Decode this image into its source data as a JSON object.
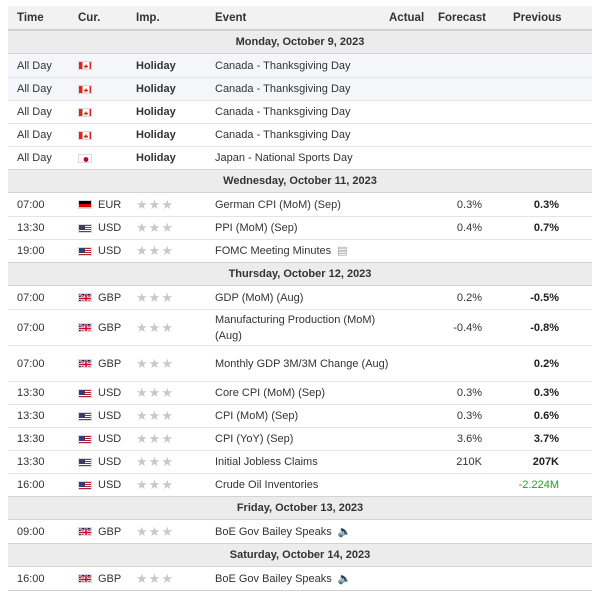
{
  "columns": {
    "time": "Time",
    "cur": "Cur.",
    "imp": "Imp.",
    "event": "Event",
    "actual": "Actual",
    "forecast": "Forecast",
    "previous": "Previous"
  },
  "colors": {
    "header_bg": "#f2f2f2",
    "date_bg": "#ececec",
    "positive": "#2a9a2a",
    "star": "#c8c8c8"
  },
  "days": [
    {
      "date": "Monday, October 9, 2023",
      "rows": [
        {
          "time": "All Day",
          "flag": "ca",
          "cur": "",
          "holiday": "Holiday",
          "event": "Canada - Thanksgiving Day",
          "forecast": "",
          "previous": ""
        },
        {
          "time": "All Day",
          "flag": "ca",
          "cur": "",
          "holiday": "Holiday",
          "event": "Canada - Thanksgiving Day",
          "forecast": "",
          "previous": ""
        },
        {
          "time": "All Day",
          "flag": "ca",
          "cur": "",
          "holiday": "Holiday",
          "event": "Canada - Thanksgiving Day",
          "forecast": "",
          "previous": ""
        },
        {
          "time": "All Day",
          "flag": "ca",
          "cur": "",
          "holiday": "Holiday",
          "event": "Canada - Thanksgiving Day",
          "forecast": "",
          "previous": ""
        },
        {
          "time": "All Day",
          "flag": "jp",
          "cur": "",
          "holiday": "Holiday",
          "event": "Japan - National Sports Day",
          "forecast": "",
          "previous": ""
        }
      ]
    },
    {
      "date": "Wednesday, October 11, 2023",
      "rows": [
        {
          "time": "07:00",
          "flag": "de",
          "cur": "EUR",
          "event": "German CPI (MoM) (Sep)",
          "forecast": "0.3%",
          "previous": "0.3%"
        },
        {
          "time": "13:30",
          "flag": "us",
          "cur": "USD",
          "event": "PPI (MoM) (Sep)",
          "forecast": "0.4%",
          "previous": "0.7%"
        },
        {
          "time": "19:00",
          "flag": "us",
          "cur": "USD",
          "event": "FOMC Meeting Minutes",
          "icon": "document-icon",
          "forecast": "",
          "previous": ""
        }
      ]
    },
    {
      "date": "Thursday, October 12, 2023",
      "rows": [
        {
          "time": "07:00",
          "flag": "gb",
          "cur": "GBP",
          "event": "GDP (MoM) (Aug)",
          "forecast": "0.2%",
          "previous": "-0.5%"
        },
        {
          "time": "07:00",
          "flag": "gb",
          "cur": "GBP",
          "event": "Manufacturing Production (MoM) (Aug)",
          "forecast": "-0.4%",
          "previous": "-0.8%",
          "tall": true
        },
        {
          "time": "07:00",
          "flag": "gb",
          "cur": "GBP",
          "event": "Monthly GDP 3M/3M Change (Aug)",
          "forecast": "",
          "previous": "0.2%",
          "tall": true
        },
        {
          "time": "13:30",
          "flag": "us",
          "cur": "USD",
          "event": "Core CPI (MoM) (Sep)",
          "forecast": "0.3%",
          "previous": "0.3%"
        },
        {
          "time": "13:30",
          "flag": "us",
          "cur": "USD",
          "event": "CPI (MoM) (Sep)",
          "forecast": "0.3%",
          "previous": "0.6%"
        },
        {
          "time": "13:30",
          "flag": "us",
          "cur": "USD",
          "event": "CPI (YoY) (Sep)",
          "forecast": "3.6%",
          "previous": "3.7%"
        },
        {
          "time": "13:30",
          "flag": "us",
          "cur": "USD",
          "event": "Initial Jobless Claims",
          "forecast": "210K",
          "previous": "207K"
        },
        {
          "time": "16:00",
          "flag": "us",
          "cur": "USD",
          "event": "Crude Oil Inventories",
          "forecast": "",
          "previous": "-2.224M",
          "previous_positive": true
        }
      ]
    },
    {
      "date": "Friday, October 13, 2023",
      "rows": [
        {
          "time": "09:00",
          "flag": "gb",
          "cur": "GBP",
          "event": "BoE Gov Bailey Speaks",
          "icon": "speaker-icon",
          "forecast": "",
          "previous": ""
        }
      ]
    },
    {
      "date": "Saturday, October 14, 2023",
      "rows": [
        {
          "time": "16:00",
          "flag": "gb",
          "cur": "GBP",
          "event": "BoE Gov Bailey Speaks",
          "icon": "speaker-icon",
          "forecast": "",
          "previous": ""
        }
      ]
    }
  ]
}
